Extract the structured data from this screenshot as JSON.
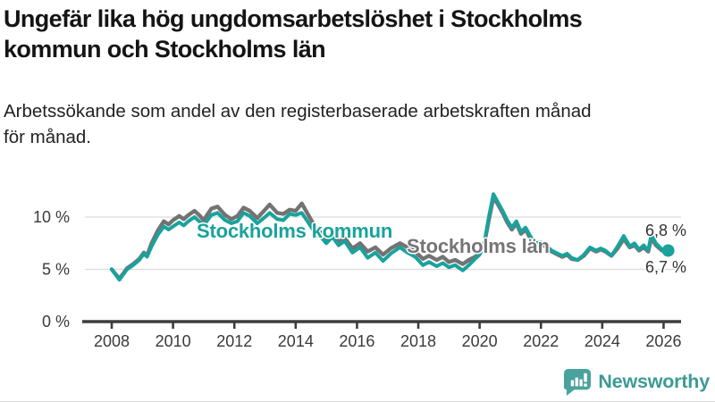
{
  "header": {
    "title_line1": "Ungefär lika hög ungdomsarbetslöshet i Stockholms",
    "title_line2": "kommun och Stockholms län",
    "subtitle_line1": "Arbetssökande som andel av den registerbaserade arbetskraften månad",
    "subtitle_line2": "för månad."
  },
  "chart_data": {
    "type": "line",
    "title": "Ungefär lika hög ungdomsarbetslöshet i Stockholms kommun och Stockholms län",
    "subtitle": "Arbetssökande som andel av den registerbaserade arbetskraften månad för månad.",
    "unit": "%",
    "grid": "horizontal",
    "legend_position": "inline-labels",
    "xlim": [
      2007.125,
      2026.57
    ],
    "ylim": [
      0,
      13.2
    ],
    "x_ticks": [
      {
        "value": 2008,
        "label": "2008"
      },
      {
        "value": 2010,
        "label": "2010"
      },
      {
        "value": 2012,
        "label": "2012"
      },
      {
        "value": 2014,
        "label": "2014"
      },
      {
        "value": 2016,
        "label": "2016"
      },
      {
        "value": 2018,
        "label": "2018"
      },
      {
        "value": 2020,
        "label": "2020"
      },
      {
        "value": 2022,
        "label": "2022"
      },
      {
        "value": 2024,
        "label": "2024"
      },
      {
        "value": 2026,
        "label": "2026"
      }
    ],
    "y_ticks": [
      {
        "value": 0,
        "label": "0 %"
      },
      {
        "value": 5,
        "label": "5 %"
      },
      {
        "value": 10,
        "label": "10 %"
      }
    ],
    "series": [
      {
        "name": "Stockholms län",
        "color": "#737373",
        "end_label": "6,7 %",
        "end_dot": false,
        "points": [
          [
            2008,
            5
          ],
          [
            2008.25,
            4.1
          ],
          [
            2008.5,
            5.1
          ],
          [
            2008.7,
            5.5
          ],
          [
            2008.9,
            6
          ],
          [
            2009.05,
            6.6
          ],
          [
            2009.15,
            6.3
          ],
          [
            2009.3,
            7.5
          ],
          [
            2009.5,
            8.7
          ],
          [
            2009.7,
            9.6
          ],
          [
            2009.85,
            9.3
          ],
          [
            2010,
            9.7
          ],
          [
            2010.2,
            10.1
          ],
          [
            2010.35,
            9.8
          ],
          [
            2010.5,
            10.2
          ],
          [
            2010.7,
            10.6
          ],
          [
            2010.85,
            10.2
          ],
          [
            2011,
            9.7
          ],
          [
            2011.25,
            10.8
          ],
          [
            2011.45,
            11
          ],
          [
            2011.7,
            10.2
          ],
          [
            2011.9,
            9.8
          ],
          [
            2012.1,
            10.1
          ],
          [
            2012.3,
            10.9
          ],
          [
            2012.5,
            10.6
          ],
          [
            2012.75,
            9.9
          ],
          [
            2013,
            10.7
          ],
          [
            2013.15,
            11.2
          ],
          [
            2013.4,
            10.4
          ],
          [
            2013.6,
            10.3
          ],
          [
            2013.8,
            10.7
          ],
          [
            2014,
            10.6
          ],
          [
            2014.2,
            11.3
          ],
          [
            2014.45,
            10
          ],
          [
            2014.65,
            9
          ],
          [
            2014.85,
            8.4
          ],
          [
            2015,
            7.9
          ],
          [
            2015.2,
            8.5
          ],
          [
            2015.4,
            7.6
          ],
          [
            2015.6,
            8
          ],
          [
            2015.85,
            7
          ],
          [
            2016.1,
            7.5
          ],
          [
            2016.35,
            6.7
          ],
          [
            2016.6,
            7.1
          ],
          [
            2016.85,
            6.4
          ],
          [
            2017.1,
            7
          ],
          [
            2017.4,
            7.5
          ],
          [
            2017.65,
            7.1
          ],
          [
            2017.9,
            6.7
          ],
          [
            2018.15,
            6
          ],
          [
            2018.35,
            6.3
          ],
          [
            2018.6,
            5.9
          ],
          [
            2018.8,
            6.2
          ],
          [
            2019,
            5.7
          ],
          [
            2019.2,
            5.9
          ],
          [
            2019.45,
            5.5
          ],
          [
            2019.65,
            5.9
          ],
          [
            2019.85,
            6.2
          ],
          [
            2020,
            6.5
          ],
          [
            2020.15,
            7.4
          ],
          [
            2020.3,
            9.7
          ],
          [
            2020.45,
            11.9
          ],
          [
            2020.6,
            11.2
          ],
          [
            2020.75,
            10.4
          ],
          [
            2020.9,
            9.5
          ],
          [
            2021.05,
            8.8
          ],
          [
            2021.2,
            9.4
          ],
          [
            2021.35,
            8.4
          ],
          [
            2021.5,
            8.8
          ],
          [
            2021.65,
            8
          ],
          [
            2021.8,
            7.4
          ],
          [
            2022,
            7.5
          ],
          [
            2022.15,
            7.2
          ],
          [
            2022.35,
            6.7
          ],
          [
            2022.55,
            6.4
          ],
          [
            2022.7,
            6.2
          ],
          [
            2022.85,
            6.4
          ],
          [
            2023,
            6
          ],
          [
            2023.2,
            5.9
          ],
          [
            2023.4,
            6.3
          ],
          [
            2023.6,
            7
          ],
          [
            2023.8,
            6.7
          ],
          [
            2023.95,
            6.9
          ],
          [
            2024.1,
            6.7
          ],
          [
            2024.3,
            6.3
          ],
          [
            2024.5,
            7
          ],
          [
            2024.7,
            7.9
          ],
          [
            2024.9,
            7.1
          ],
          [
            2025.05,
            7.3
          ],
          [
            2025.2,
            6.8
          ],
          [
            2025.35,
            7.1
          ],
          [
            2025.5,
            6.7
          ],
          [
            2025.6,
            8
          ],
          [
            2025.75,
            7.3
          ],
          [
            2025.95,
            6.8
          ],
          [
            2026.15,
            6.7
          ]
        ]
      },
      {
        "name": "Stockholms kommun",
        "color": "#1aa29c",
        "end_label": "6,8 %",
        "end_dot": true,
        "points": [
          [
            2008,
            5
          ],
          [
            2008.25,
            4
          ],
          [
            2008.5,
            5
          ],
          [
            2008.7,
            5.4
          ],
          [
            2008.9,
            5.9
          ],
          [
            2009.05,
            6.5
          ],
          [
            2009.15,
            6.2
          ],
          [
            2009.3,
            7.2
          ],
          [
            2009.5,
            8.3
          ],
          [
            2009.7,
            9.1
          ],
          [
            2009.85,
            8.8
          ],
          [
            2010,
            9.1
          ],
          [
            2010.2,
            9.5
          ],
          [
            2010.35,
            9.2
          ],
          [
            2010.5,
            9.6
          ],
          [
            2010.7,
            10
          ],
          [
            2010.85,
            9.6
          ],
          [
            2011,
            9.2
          ],
          [
            2011.25,
            10.2
          ],
          [
            2011.45,
            10.4
          ],
          [
            2011.7,
            9.7
          ],
          [
            2011.9,
            9.4
          ],
          [
            2012.1,
            9.6
          ],
          [
            2012.3,
            10.4
          ],
          [
            2012.5,
            10.1
          ],
          [
            2012.75,
            9.4
          ],
          [
            2013,
            10
          ],
          [
            2013.15,
            10.4
          ],
          [
            2013.4,
            9.8
          ],
          [
            2013.6,
            9.7
          ],
          [
            2013.8,
            10.3
          ],
          [
            2014,
            10.2
          ],
          [
            2014.2,
            10.4
          ],
          [
            2014.45,
            9.3
          ],
          [
            2014.65,
            8.4
          ],
          [
            2014.85,
            8
          ],
          [
            2015,
            7.5
          ],
          [
            2015.2,
            8.1
          ],
          [
            2015.4,
            7.3
          ],
          [
            2015.6,
            7.7
          ],
          [
            2015.85,
            6.6
          ],
          [
            2016.1,
            7.1
          ],
          [
            2016.35,
            6.1
          ],
          [
            2016.6,
            6.6
          ],
          [
            2016.85,
            5.8
          ],
          [
            2017.1,
            6.5
          ],
          [
            2017.4,
            7.1
          ],
          [
            2017.65,
            6.6
          ],
          [
            2017.9,
            6.2
          ],
          [
            2018.15,
            5.4
          ],
          [
            2018.35,
            5.7
          ],
          [
            2018.6,
            5.3
          ],
          [
            2018.8,
            5.6
          ],
          [
            2019,
            5.2
          ],
          [
            2019.2,
            5.4
          ],
          [
            2019.45,
            4.9
          ],
          [
            2019.65,
            5.4
          ],
          [
            2019.85,
            6
          ],
          [
            2020,
            6.4
          ],
          [
            2020.15,
            7.5
          ],
          [
            2020.3,
            10
          ],
          [
            2020.45,
            12.2
          ],
          [
            2020.6,
            11.4
          ],
          [
            2020.75,
            10.6
          ],
          [
            2020.9,
            9.7
          ],
          [
            2021.05,
            9
          ],
          [
            2021.2,
            9.6
          ],
          [
            2021.35,
            8.6
          ],
          [
            2021.5,
            9
          ],
          [
            2021.65,
            8.2
          ],
          [
            2021.8,
            7.5
          ],
          [
            2022,
            7.6
          ],
          [
            2022.15,
            7.3
          ],
          [
            2022.35,
            6.8
          ],
          [
            2022.55,
            6.5
          ],
          [
            2022.7,
            6.3
          ],
          [
            2022.85,
            6.5
          ],
          [
            2023,
            6.1
          ],
          [
            2023.2,
            5.9
          ],
          [
            2023.4,
            6.4
          ],
          [
            2023.6,
            7.1
          ],
          [
            2023.8,
            6.8
          ],
          [
            2023.95,
            7
          ],
          [
            2024.1,
            6.8
          ],
          [
            2024.3,
            6.3
          ],
          [
            2024.5,
            7.2
          ],
          [
            2024.7,
            8.2
          ],
          [
            2024.9,
            7.2
          ],
          [
            2025.05,
            7.5
          ],
          [
            2025.2,
            6.9
          ],
          [
            2025.35,
            7.3
          ],
          [
            2025.5,
            6.8
          ],
          [
            2025.6,
            8.3
          ],
          [
            2025.75,
            7.5
          ],
          [
            2025.95,
            6.9
          ],
          [
            2026.15,
            6.8
          ]
        ]
      }
    ]
  },
  "footer": {
    "brand": "Newsworthy",
    "logo_icon": "newsworthy-speech-bubble-barchart-icon",
    "brand_color": "#3d9a94"
  }
}
